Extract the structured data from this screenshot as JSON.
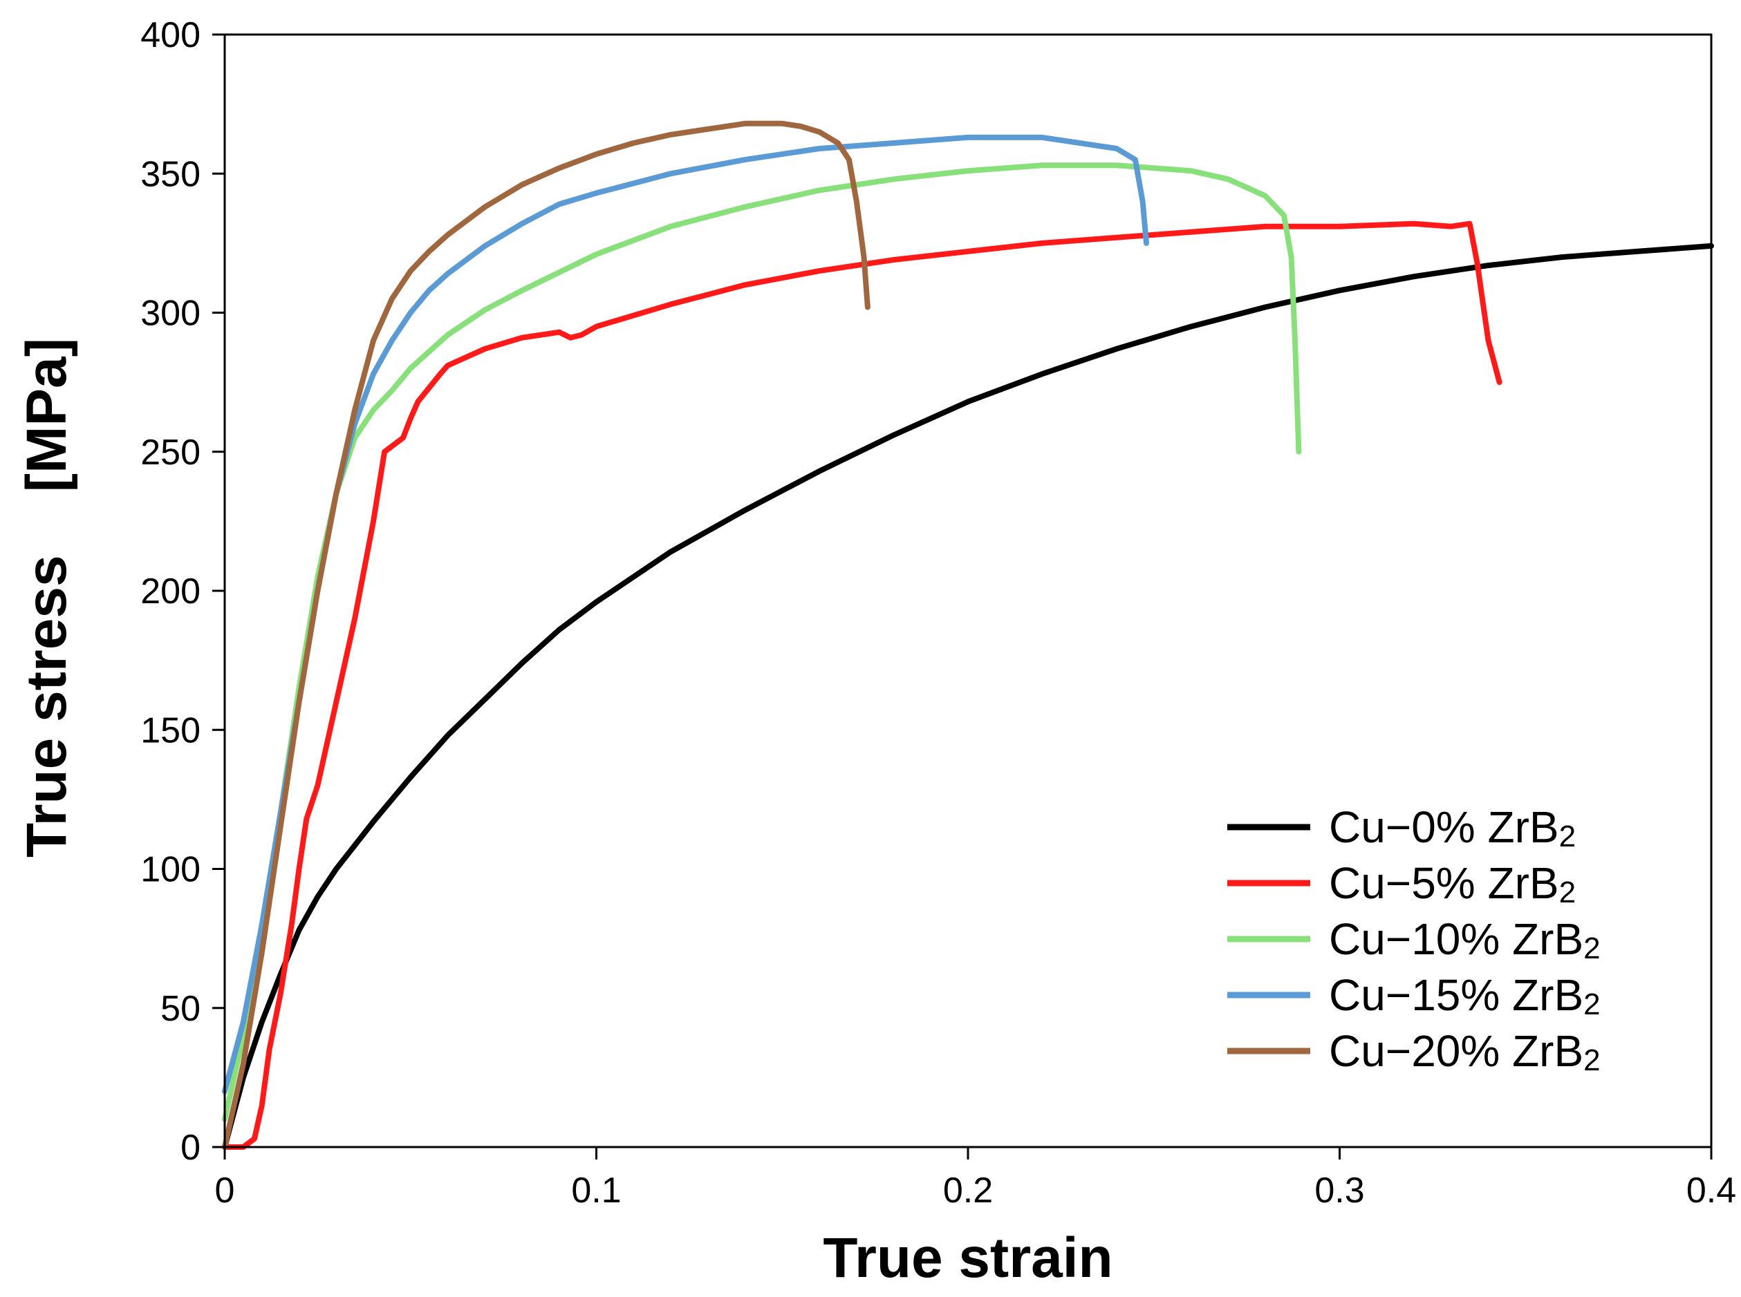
{
  "chart_data": {
    "type": "line",
    "title": "",
    "xlabel": "True strain",
    "ylabel": "True stress    [MPa]",
    "xlim": [
      0,
      0.4
    ],
    "ylim": [
      0,
      400
    ],
    "xticks": [
      0,
      0.1,
      0.2,
      0.3,
      0.4
    ],
    "xtick_labels": [
      "0",
      "0.1",
      "0.2",
      "0.3",
      "0.4"
    ],
    "yticks": [
      0,
      50,
      100,
      150,
      200,
      250,
      300,
      350,
      400
    ],
    "ytick_labels": [
      "0",
      "50",
      "100",
      "150",
      "200",
      "250",
      "300",
      "350",
      "400"
    ],
    "grid": false,
    "legend_position": "bottom-right",
    "series": [
      {
        "name": "Cu−0% ZrB₂",
        "label_main": "Cu−0% ZrB",
        "label_sub": "2",
        "color": "#000000",
        "x": [
          0,
          0.005,
          0.01,
          0.015,
          0.02,
          0.025,
          0.03,
          0.04,
          0.05,
          0.06,
          0.07,
          0.08,
          0.09,
          0.1,
          0.12,
          0.14,
          0.16,
          0.18,
          0.2,
          0.22,
          0.24,
          0.26,
          0.28,
          0.3,
          0.32,
          0.34,
          0.36,
          0.38,
          0.4
        ],
        "y": [
          0,
          25,
          45,
          62,
          78,
          90,
          100,
          117,
          133,
          148,
          161,
          174,
          186,
          196,
          214,
          229,
          243,
          256,
          268,
          278,
          287,
          295,
          302,
          308,
          313,
          317,
          320,
          322,
          324
        ]
      },
      {
        "name": "Cu−5% ZrB₂",
        "label_main": "Cu−5% ZrB",
        "label_sub": "2",
        "color": "#ff1a1a",
        "x": [
          0,
          0.005,
          0.008,
          0.01,
          0.012,
          0.015,
          0.018,
          0.02,
          0.022,
          0.025,
          0.03,
          0.035,
          0.04,
          0.043,
          0.045,
          0.048,
          0.05,
          0.052,
          0.055,
          0.058,
          0.06,
          0.065,
          0.07,
          0.08,
          0.09,
          0.093,
          0.096,
          0.1,
          0.12,
          0.14,
          0.16,
          0.18,
          0.2,
          0.22,
          0.24,
          0.26,
          0.28,
          0.3,
          0.32,
          0.33,
          0.335,
          0.337,
          0.34,
          0.343
        ],
        "y": [
          0,
          0,
          3,
          15,
          35,
          55,
          80,
          100,
          118,
          130,
          160,
          190,
          225,
          250,
          252,
          255,
          262,
          268,
          273,
          278,
          281,
          284,
          287,
          291,
          293,
          291,
          292,
          295,
          303,
          310,
          315,
          319,
          322,
          325,
          327,
          329,
          331,
          331,
          332,
          331,
          332,
          318,
          290,
          275
        ]
      },
      {
        "name": "Cu−10% ZrB₂",
        "label_main": "Cu−10% ZrB",
        "label_sub": "2",
        "color": "#88e07a",
        "x": [
          0,
          0.005,
          0.01,
          0.015,
          0.02,
          0.025,
          0.03,
          0.035,
          0.04,
          0.045,
          0.05,
          0.06,
          0.07,
          0.08,
          0.1,
          0.12,
          0.14,
          0.16,
          0.18,
          0.2,
          0.22,
          0.24,
          0.26,
          0.27,
          0.28,
          0.285,
          0.287,
          0.288,
          0.289
        ],
        "y": [
          10,
          40,
          80,
          120,
          165,
          205,
          235,
          255,
          265,
          272,
          280,
          292,
          301,
          308,
          321,
          331,
          338,
          344,
          348,
          351,
          353,
          353,
          351,
          348,
          342,
          335,
          320,
          290,
          250
        ]
      },
      {
        "name": "Cu−15% ZrB₂",
        "label_main": "Cu−15% ZrB",
        "label_sub": "2",
        "color": "#5b9bd5",
        "x": [
          0,
          0.005,
          0.01,
          0.015,
          0.02,
          0.025,
          0.03,
          0.035,
          0.04,
          0.045,
          0.05,
          0.055,
          0.06,
          0.07,
          0.08,
          0.09,
          0.1,
          0.12,
          0.14,
          0.16,
          0.18,
          0.2,
          0.22,
          0.24,
          0.245,
          0.247,
          0.248
        ],
        "y": [
          20,
          45,
          80,
          120,
          160,
          200,
          235,
          260,
          278,
          290,
          300,
          308,
          314,
          324,
          332,
          339,
          343,
          350,
          355,
          359,
          361,
          363,
          363,
          359,
          355,
          340,
          325
        ]
      },
      {
        "name": "Cu−20% ZrB₂",
        "label_main": "Cu−20% ZrB",
        "label_sub": "2",
        "color": "#a0673e",
        "x": [
          0,
          0.005,
          0.01,
          0.015,
          0.02,
          0.025,
          0.03,
          0.035,
          0.04,
          0.045,
          0.05,
          0.055,
          0.06,
          0.065,
          0.07,
          0.08,
          0.09,
          0.1,
          0.11,
          0.12,
          0.13,
          0.14,
          0.15,
          0.155,
          0.16,
          0.165,
          0.168,
          0.17,
          0.172,
          0.173
        ],
        "y": [
          0,
          30,
          70,
          115,
          160,
          200,
          235,
          265,
          290,
          305,
          315,
          322,
          328,
          333,
          338,
          346,
          352,
          357,
          361,
          364,
          366,
          368,
          368,
          367,
          365,
          361,
          355,
          340,
          320,
          302
        ]
      }
    ]
  }
}
